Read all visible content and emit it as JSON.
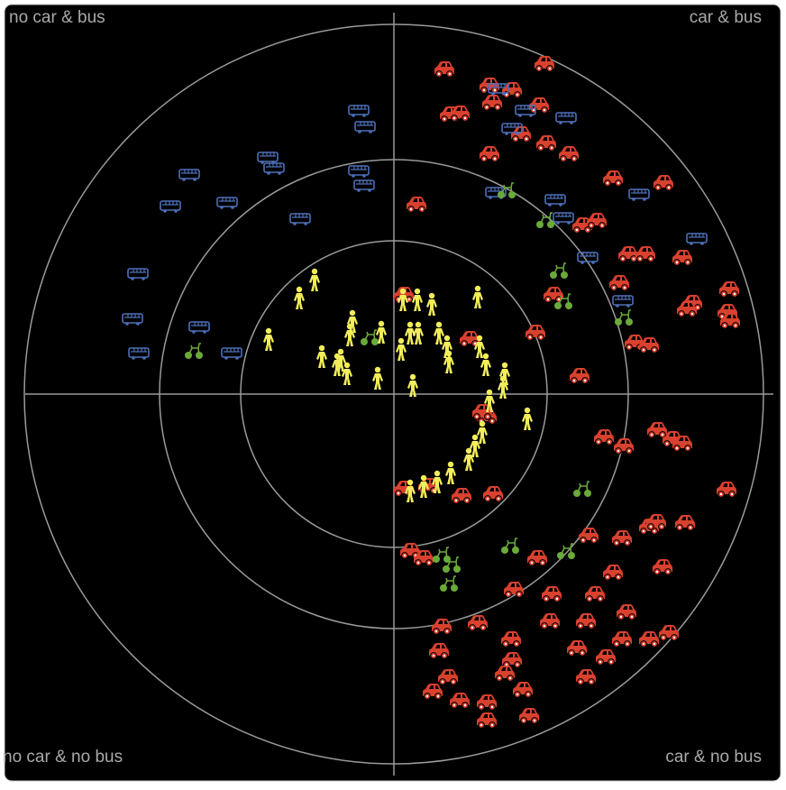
{
  "chart_data": {
    "type": "scatter",
    "quadrant_labels": {
      "top_left": "no car & bus",
      "top_right": "car & bus",
      "bottom_left": "no car & no bus",
      "bottom_right": "car & no bus"
    },
    "xlim": [
      -430,
      428
    ],
    "ylim": [
      -428,
      430
    ],
    "series": [
      {
        "icon": "car",
        "color": "#d9412f",
        "x": [
          56,
          167,
          106,
          131,
          62,
          73,
          109,
          161,
          169,
          194,
          106,
          141,
          243,
          299,
          25,
          209,
          225,
          260,
          279,
          320,
          250,
          372,
          331,
          325,
          370,
          373,
          177,
          157,
          84,
          267,
          283,
          206,
          11,
          103,
          98,
          233,
          255,
          292,
          309,
          320,
          369,
          110,
          75,
          38,
          11,
          18,
          33,
          159,
          216,
          253,
          283,
          291,
          323,
          298,
          243,
          133,
          175,
          223,
          213,
          258,
          53,
          93,
          130,
          173,
          203,
          253,
          283,
          305,
          50,
          131,
          235,
          60,
          123,
          213,
          43,
          103,
          143,
          73,
          150,
          103
        ],
        "y": [
          359,
          365,
          341,
          336,
          309,
          310,
          322,
          319,
          277,
          265,
          265,
          287,
          238,
          233,
          209,
          186,
          191,
          154,
          154,
          150,
          122,
          115,
          100,
          93,
          90,
          80,
          109,
          67,
          60,
          56,
          53,
          19,
          109,
          -26,
          -21,
          -49,
          -59,
          -41,
          -51,
          -56,
          -107,
          -112,
          -114,
          -103,
          -106,
          -175,
          -183,
          -183,
          -158,
          -161,
          -148,
          -143,
          -144,
          -193,
          -199,
          -218,
          -223,
          -223,
          -253,
          -243,
          -259,
          -255,
          -273,
          -253,
          -283,
          -273,
          -273,
          -266,
          -286,
          -296,
          -293,
          -315,
          -311,
          -315,
          -331,
          -343,
          -329,
          -341,
          -358,
          -363
        ]
      },
      {
        "icon": "bus",
        "color": "#4d6fb8",
        "x": [
          -39,
          -32,
          -227,
          -140,
          -133,
          -248,
          -185,
          -104,
          -39,
          -33,
          -284,
          -290,
          -216,
          -283,
          -180,
          116,
          146,
          191,
          131,
          113,
          179,
          188,
          272,
          336,
          215,
          254
        ],
        "y": [
          314,
          296,
          243,
          262,
          250,
          208,
          212,
          194,
          247,
          231,
          133,
          83,
          74,
          45,
          45,
          338,
          314,
          306,
          294,
          223,
          215,
          195,
          221,
          172,
          151,
          103
        ]
      },
      {
        "icon": "bike",
        "color": "#6aaa3a",
        "x": [
          -222,
          -27,
          125,
          168,
          183,
          188,
          255,
          209,
          129,
          191,
          53,
          64,
          61
        ],
        "y": [
          47,
          62,
          225,
          192,
          136,
          102,
          84,
          -106,
          -169,
          -175,
          -179,
          -190,
          -211
        ]
      },
      {
        "icon": "walk",
        "color": "#f2ee5a",
        "x": [
          -88,
          -105,
          -139,
          -46,
          -49,
          -80,
          -63,
          -52,
          -18,
          -14,
          8,
          18,
          27,
          26,
          42,
          10,
          93,
          50,
          59,
          61,
          21,
          95,
          102,
          123,
          121,
          106,
          148,
          98,
          90,
          83,
          63,
          48,
          33,
          18,
          -59
        ],
        "y": [
          126,
          106,
          60,
          80,
          65,
          41,
          32,
          22,
          17,
          68,
          49,
          67,
          67,
          104,
          99,
          104,
          107,
          67,
          52,
          35,
          9,
          52,
          32,
          22,
          7,
          -8,
          -28,
          -43,
          -58,
          -73,
          -88,
          -98,
          -103,
          -108,
          37
        ]
      }
    ]
  }
}
